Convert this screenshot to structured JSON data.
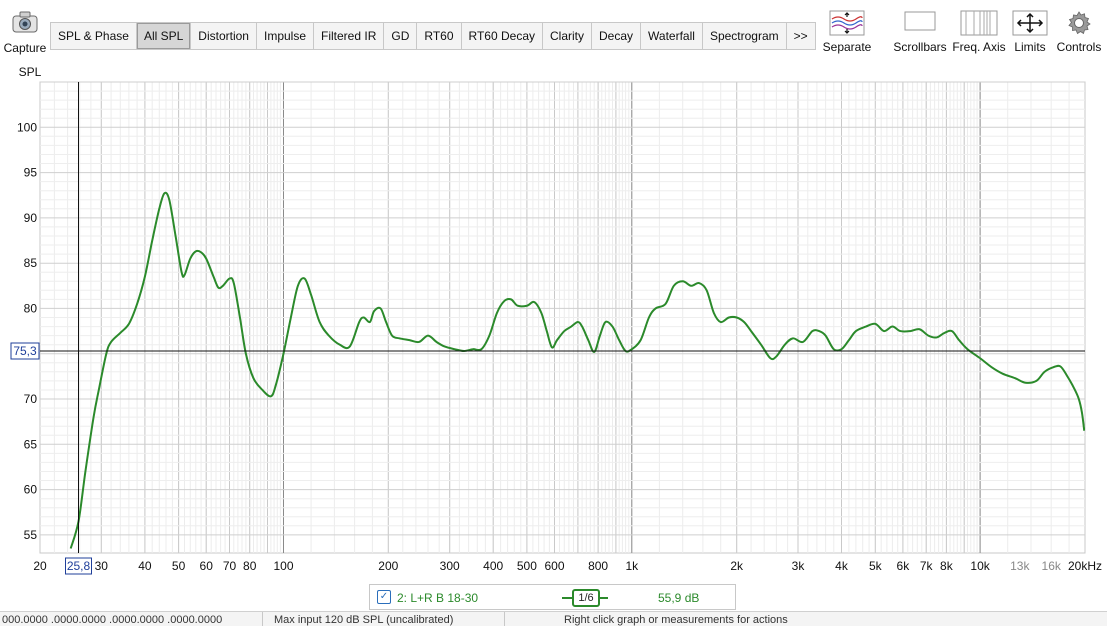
{
  "toolbar": {
    "capture_label": "Capture",
    "tabs": [
      {
        "label": "SPL & Phase",
        "active": false
      },
      {
        "label": "All SPL",
        "active": true
      },
      {
        "label": "Distortion",
        "active": false
      },
      {
        "label": "Impulse",
        "active": false
      },
      {
        "label": "Filtered IR",
        "active": false
      },
      {
        "label": "GD",
        "active": false
      },
      {
        "label": "RT60",
        "active": false
      },
      {
        "label": "RT60 Decay",
        "active": false
      },
      {
        "label": "Clarity",
        "active": false
      },
      {
        "label": "Decay",
        "active": false
      },
      {
        "label": "Waterfall",
        "active": false
      },
      {
        "label": "Spectrogram",
        "active": false
      },
      {
        "label": ">>",
        "active": false
      }
    ],
    "tools": {
      "separate": "Separate",
      "scrollbars": "Scrollbars",
      "freq_axis": "Freq. Axis",
      "limits": "Limits",
      "controls": "Controls"
    }
  },
  "chart_data": {
    "type": "line",
    "ylabel": "SPL",
    "x_scale": "log",
    "xlim": [
      20,
      20000
    ],
    "ylim": [
      53,
      105
    ],
    "x_ticks": [
      {
        "v": 20,
        "label": "20"
      },
      {
        "v": 30,
        "label": "30"
      },
      {
        "v": 40,
        "label": "40"
      },
      {
        "v": 50,
        "label": "50"
      },
      {
        "v": 60,
        "label": "60"
      },
      {
        "v": 70,
        "label": "70"
      },
      {
        "v": 80,
        "label": "80"
      },
      {
        "v": 100,
        "label": "100"
      },
      {
        "v": 200,
        "label": "200"
      },
      {
        "v": 300,
        "label": "300"
      },
      {
        "v": 400,
        "label": "400"
      },
      {
        "v": 500,
        "label": "500"
      },
      {
        "v": 600,
        "label": "600"
      },
      {
        "v": 800,
        "label": "800"
      },
      {
        "v": 1000,
        "label": "1k"
      },
      {
        "v": 2000,
        "label": "2k"
      },
      {
        "v": 3000,
        "label": "3k"
      },
      {
        "v": 4000,
        "label": "4k"
      },
      {
        "v": 5000,
        "label": "5k"
      },
      {
        "v": 6000,
        "label": "6k"
      },
      {
        "v": 7000,
        "label": "7k"
      },
      {
        "v": 8000,
        "label": "8k"
      },
      {
        "v": 10000,
        "label": "10k"
      },
      {
        "v": 13000,
        "label": "13k"
      },
      {
        "v": 16000,
        "label": "16k"
      },
      {
        "v": 20000,
        "label": "20kHz"
      }
    ],
    "y_ticks": [
      55,
      60,
      65,
      70,
      75,
      80,
      85,
      90,
      95,
      100
    ],
    "cursor": {
      "x": 25.8,
      "y": 75.3,
      "x_label": "25,8",
      "y_label": "75,3"
    },
    "series": [
      {
        "name": "2: L+R B 18-30",
        "color": "#2b8a2b",
        "points": [
          [
            24.5,
            53.5
          ],
          [
            25.8,
            56.5
          ],
          [
            27,
            62
          ],
          [
            28.5,
            68
          ],
          [
            29.5,
            71
          ],
          [
            31,
            75
          ],
          [
            32,
            76.3
          ],
          [
            34,
            77.3
          ],
          [
            36,
            78.3
          ],
          [
            38,
            80.5
          ],
          [
            40,
            83.5
          ],
          [
            42,
            87.5
          ],
          [
            44,
            91
          ],
          [
            45.5,
            92.7
          ],
          [
            47,
            92
          ],
          [
            49,
            88
          ],
          [
            51,
            84
          ],
          [
            52,
            83.7
          ],
          [
            54,
            85.5
          ],
          [
            56,
            86.3
          ],
          [
            58,
            86.2
          ],
          [
            60,
            85.5
          ],
          [
            63,
            83.5
          ],
          [
            65,
            82.3
          ],
          [
            67,
            82.5
          ],
          [
            70,
            83.3
          ],
          [
            72,
            82.8
          ],
          [
            75,
            79
          ],
          [
            78,
            75
          ],
          [
            82,
            72.3
          ],
          [
            87,
            71
          ],
          [
            92,
            70.3
          ],
          [
            95,
            71.5
          ],
          [
            100,
            75
          ],
          [
            105,
            79
          ],
          [
            110,
            82.5
          ],
          [
            115,
            83.3
          ],
          [
            120,
            81.5
          ],
          [
            127,
            78.5
          ],
          [
            135,
            77
          ],
          [
            145,
            76
          ],
          [
            155,
            75.8
          ],
          [
            165,
            78.5
          ],
          [
            170,
            79
          ],
          [
            177,
            78.5
          ],
          [
            182,
            79.7
          ],
          [
            190,
            80
          ],
          [
            197,
            78.5
          ],
          [
            205,
            77
          ],
          [
            215,
            76.7
          ],
          [
            230,
            76.5
          ],
          [
            245,
            76.3
          ],
          [
            260,
            77
          ],
          [
            275,
            76.3
          ],
          [
            290,
            75.8
          ],
          [
            310,
            75.5
          ],
          [
            330,
            75.3
          ],
          [
            350,
            75.5
          ],
          [
            370,
            75.5
          ],
          [
            390,
            77
          ],
          [
            410,
            79.5
          ],
          [
            430,
            80.8
          ],
          [
            450,
            81
          ],
          [
            470,
            80.3
          ],
          [
            500,
            80.3
          ],
          [
            525,
            80.7
          ],
          [
            550,
            79.5
          ],
          [
            570,
            77.5
          ],
          [
            590,
            75.7
          ],
          [
            610,
            76.5
          ],
          [
            640,
            77.5
          ],
          [
            670,
            78
          ],
          [
            700,
            78.5
          ],
          [
            720,
            78
          ],
          [
            750,
            76.5
          ],
          [
            780,
            75.2
          ],
          [
            810,
            77
          ],
          [
            840,
            78.5
          ],
          [
            880,
            78
          ],
          [
            920,
            76.5
          ],
          [
            960,
            75.3
          ],
          [
            1000,
            75.5
          ],
          [
            1060,
            76.5
          ],
          [
            1120,
            79
          ],
          [
            1170,
            80
          ],
          [
            1250,
            80.5
          ],
          [
            1320,
            82.5
          ],
          [
            1400,
            83
          ],
          [
            1480,
            82.5
          ],
          [
            1560,
            82.8
          ],
          [
            1640,
            82
          ],
          [
            1720,
            79.5
          ],
          [
            1800,
            78.5
          ],
          [
            1900,
            79
          ],
          [
            2000,
            79
          ],
          [
            2100,
            78.5
          ],
          [
            2200,
            77.5
          ],
          [
            2350,
            76
          ],
          [
            2500,
            74.5
          ],
          [
            2600,
            74.7
          ],
          [
            2750,
            76
          ],
          [
            2900,
            76.7
          ],
          [
            3100,
            76.3
          ],
          [
            3300,
            77.5
          ],
          [
            3450,
            77.5
          ],
          [
            3600,
            77
          ],
          [
            3800,
            75.5
          ],
          [
            4000,
            75.5
          ],
          [
            4200,
            76.5
          ],
          [
            4400,
            77.5
          ],
          [
            4700,
            78
          ],
          [
            5000,
            78.3
          ],
          [
            5300,
            77.5
          ],
          [
            5600,
            78
          ],
          [
            5900,
            77.5
          ],
          [
            6300,
            77.5
          ],
          [
            6700,
            77.7
          ],
          [
            7100,
            77
          ],
          [
            7500,
            76.8
          ],
          [
            7900,
            77.3
          ],
          [
            8300,
            77.5
          ],
          [
            8700,
            76.5
          ],
          [
            9200,
            75.5
          ],
          [
            10000,
            74.5
          ],
          [
            10800,
            73.5
          ],
          [
            11600,
            72.8
          ],
          [
            12600,
            72.3
          ],
          [
            13500,
            71.8
          ],
          [
            14500,
            72
          ],
          [
            15300,
            73
          ],
          [
            16200,
            73.5
          ],
          [
            17000,
            73.6
          ],
          [
            17800,
            72.5
          ],
          [
            18600,
            71.2
          ],
          [
            19200,
            70
          ],
          [
            19600,
            68.5
          ],
          [
            19900,
            66.5
          ]
        ]
      }
    ]
  },
  "legend": {
    "checked": true,
    "name": "2: L+R B 18-30",
    "smoothing": "1/6",
    "level": "55,9 dB"
  },
  "status": {
    "coords": "000.0000 .0000.0000 .0000.0000 .0000.0000",
    "max_input": "Max input 120 dB SPL (uncalibrated)",
    "hint": "Right click graph or measurements for actions"
  }
}
